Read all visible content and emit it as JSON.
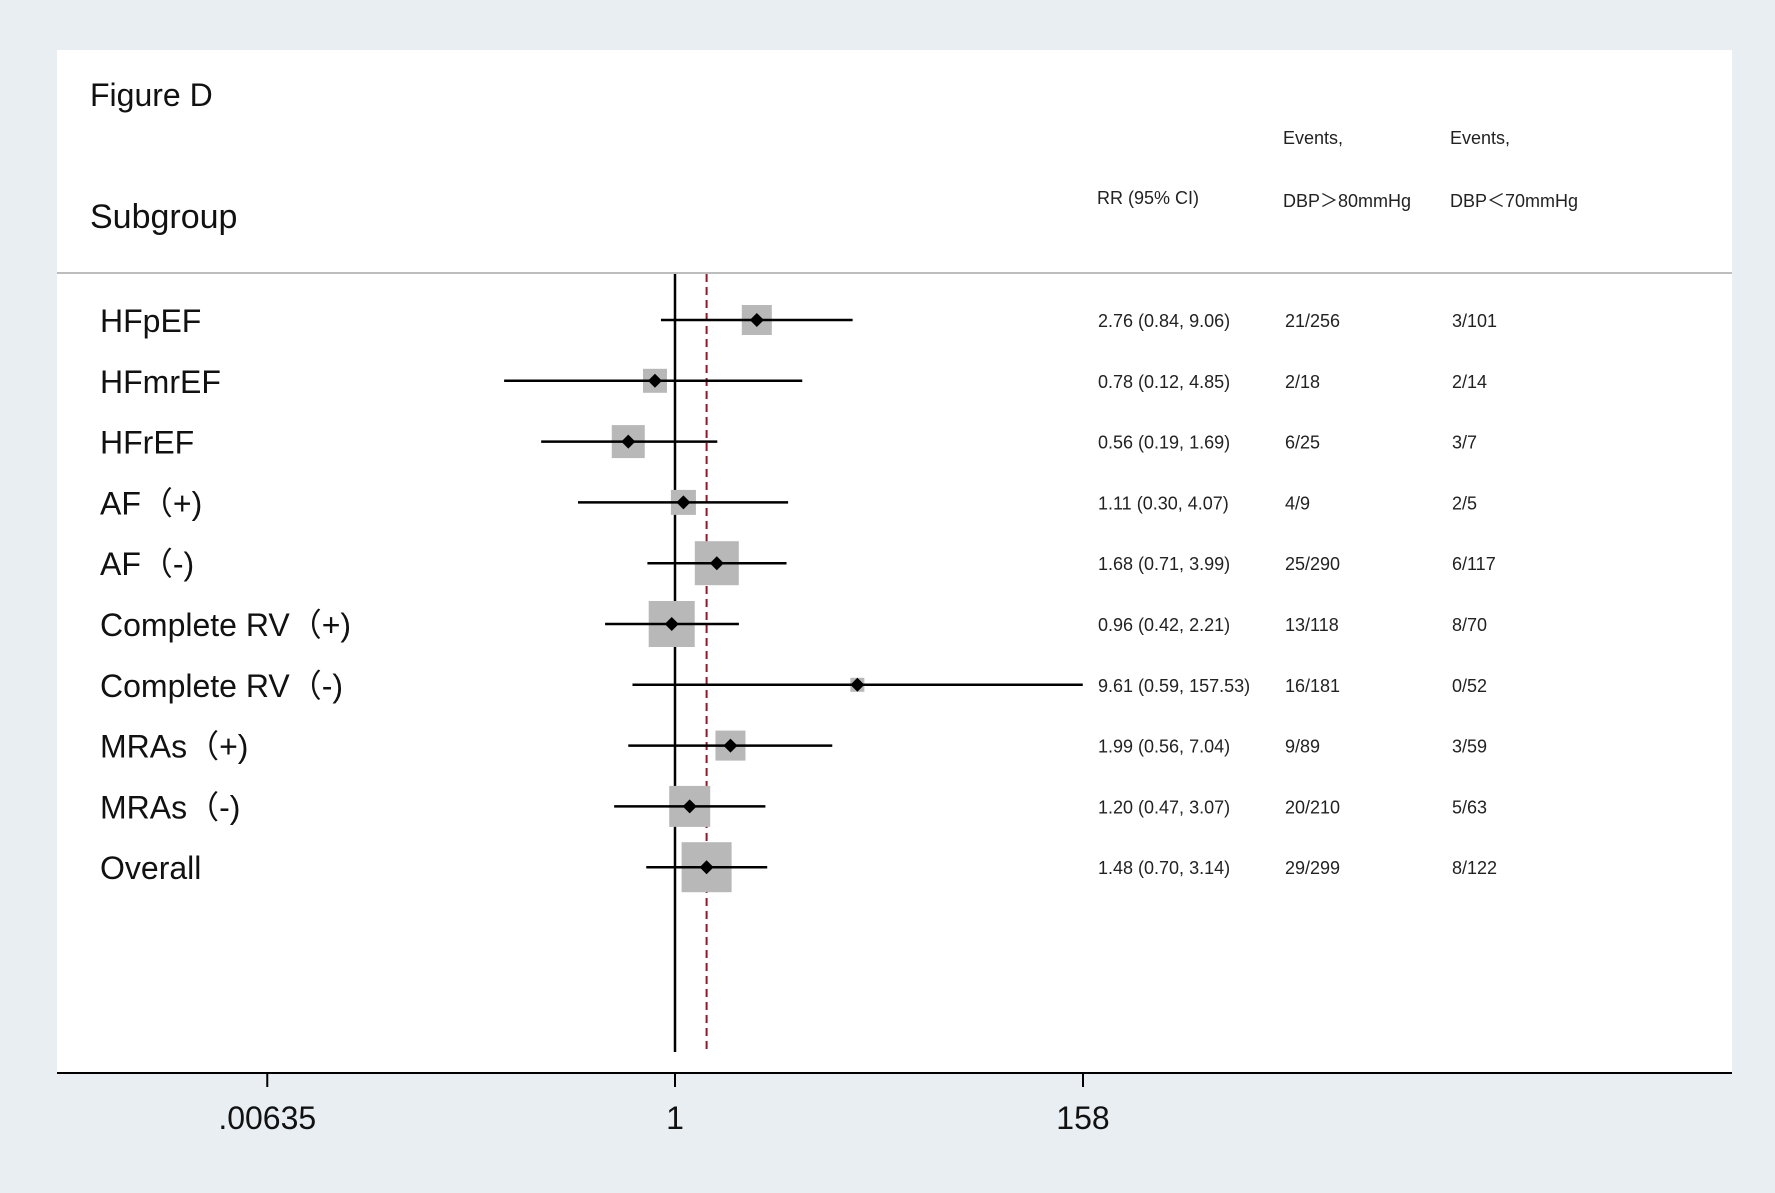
{
  "figure_label": "Figure D",
  "header": {
    "subgroup": "Subgroup",
    "rr": "RR (95% CI)",
    "events_1_line1": "Events,",
    "events_1_line2": "DBP＞80mmHg",
    "events_2_line1": "Events,",
    "events_2_line2": "DBP＜70mmHg"
  },
  "colors": {
    "background": "#e8eef2",
    "panel": "#ffffff",
    "box": "#b8b8b8",
    "reference_line": "#8b1a2b",
    "line": "#000000"
  },
  "chart_data": {
    "type": "forest",
    "x_scale": "log",
    "xticks": [
      0.00635,
      1,
      158
    ],
    "xtick_labels": [
      ".00635",
      "1",
      "158"
    ],
    "null_value": 1,
    "overall_reference": 1.48,
    "rows": [
      {
        "label": "HFpEF",
        "rr": 2.76,
        "lo": 0.84,
        "hi": 9.06,
        "ci_text": "2.76 (0.84, 9.06)",
        "events_high": "21/256",
        "events_low": "3/101"
      },
      {
        "label": "HFmrEF",
        "rr": 0.78,
        "lo": 0.12,
        "hi": 4.85,
        "ci_text": "0.78 (0.12, 4.85)",
        "events_high": "2/18",
        "events_low": "2/14"
      },
      {
        "label": "HFrEF",
        "rr": 0.56,
        "lo": 0.19,
        "hi": 1.69,
        "ci_text": "0.56 (0.19, 1.69)",
        "events_high": "6/25",
        "events_low": "3/7"
      },
      {
        "label": "AF（+)",
        "rr": 1.11,
        "lo": 0.3,
        "hi": 4.07,
        "ci_text": "1.11 (0.30, 4.07)",
        "events_high": "4/9",
        "events_low": "2/5"
      },
      {
        "label": "AF（-)",
        "rr": 1.68,
        "lo": 0.71,
        "hi": 3.99,
        "ci_text": "1.68 (0.71, 3.99)",
        "events_high": "25/290",
        "events_low": "6/117"
      },
      {
        "label": "Complete RV（+)",
        "rr": 0.96,
        "lo": 0.42,
        "hi": 2.21,
        "ci_text": "0.96 (0.42, 2.21)",
        "events_high": "13/118",
        "events_low": "8/70"
      },
      {
        "label": "Complete RV（-)",
        "rr": 9.61,
        "lo": 0.59,
        "hi": 157.53,
        "ci_text": "9.61 (0.59, 157.53)",
        "events_high": "16/181",
        "events_low": "0/52"
      },
      {
        "label": "MRAs（+)",
        "rr": 1.99,
        "lo": 0.56,
        "hi": 7.04,
        "ci_text": "1.99 (0.56, 7.04)",
        "events_high": "9/89",
        "events_low": "3/59"
      },
      {
        "label": "MRAs（-)",
        "rr": 1.2,
        "lo": 0.47,
        "hi": 3.07,
        "ci_text": "1.20 (0.47, 3.07)",
        "events_high": "20/210",
        "events_low": "5/63"
      },
      {
        "label": "Overall",
        "rr": 1.48,
        "lo": 0.7,
        "hi": 3.14,
        "ci_text": "1.48 (0.70, 3.14)",
        "events_high": "29/299",
        "events_low": "8/122"
      }
    ]
  }
}
